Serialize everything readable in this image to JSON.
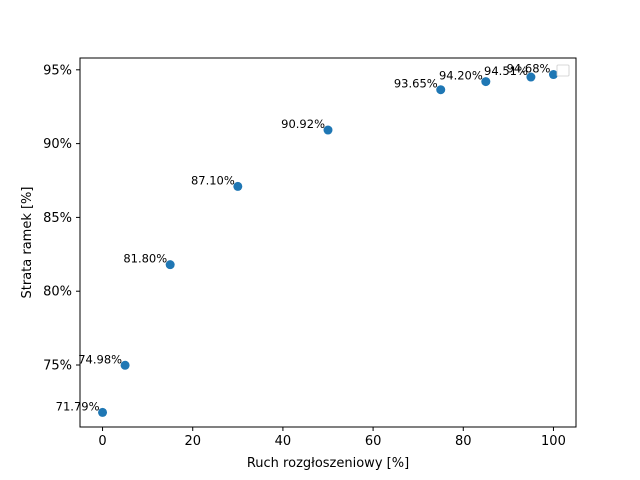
{
  "chart_data": {
    "type": "scatter",
    "title": "",
    "xlabel": "Ruch rozgłoszeniowy [%]",
    "ylabel": "Strata ramek [%]",
    "xlim": [
      -5,
      105
    ],
    "ylim": [
      70.8,
      95.8
    ],
    "xticks": [
      0,
      20,
      40,
      60,
      80,
      100
    ],
    "xtick_labels": [
      "0",
      "20",
      "40",
      "60",
      "80",
      "100"
    ],
    "yticks": [
      75,
      80,
      85,
      90,
      95
    ],
    "ytick_labels": [
      "75%",
      "80%",
      "85%",
      "90%",
      "95%"
    ],
    "grid": false,
    "legend": "top-right",
    "marker_color": "#1f77b4",
    "points": [
      {
        "x": 0,
        "y": 71.79,
        "label": "71.79%"
      },
      {
        "x": 5,
        "y": 74.98,
        "label": "74.98%"
      },
      {
        "x": 15,
        "y": 81.8,
        "label": "81.80%"
      },
      {
        "x": 30,
        "y": 87.1,
        "label": "87.10%"
      },
      {
        "x": 50,
        "y": 90.92,
        "label": "90.92%"
      },
      {
        "x": 75,
        "y": 93.65,
        "label": "93.65%"
      },
      {
        "x": 85,
        "y": 94.2,
        "label": "94.20%"
      },
      {
        "x": 95,
        "y": 94.51,
        "label": "94.51%"
      },
      {
        "x": 100,
        "y": 94.68,
        "label": "94.68%"
      }
    ]
  }
}
